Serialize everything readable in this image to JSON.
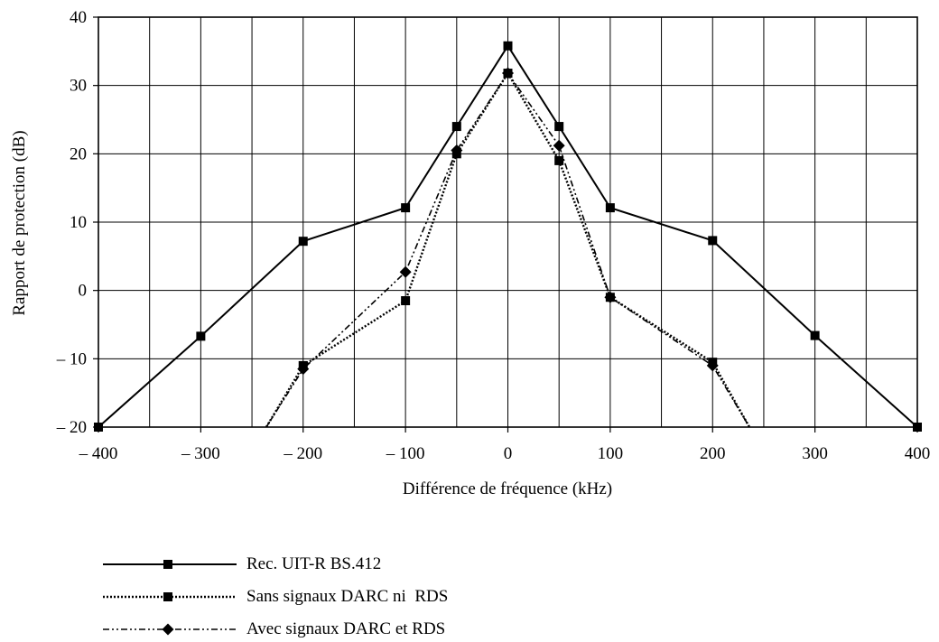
{
  "chart_data": {
    "type": "line",
    "title": "",
    "xlabel": "Différence de fréquence (kHz)",
    "ylabel": "Rapport de protection (dB)",
    "xlim": [
      -400,
      400
    ],
    "ylim": [
      -20,
      40
    ],
    "grid": true,
    "x_ticks": [
      -400,
      -300,
      -200,
      -100,
      0,
      100,
      200,
      300,
      400
    ],
    "x_tick_labels": [
      "– 400",
      "– 300",
      "– 200",
      "– 100",
      "0",
      "100",
      "200",
      "300",
      "400"
    ],
    "x_grid_step": 50,
    "y_ticks": [
      -20,
      -10,
      0,
      10,
      20,
      30,
      40
    ],
    "y_tick_labels": [
      "– 20",
      "– 10",
      "0",
      "10",
      "20",
      "30",
      "40"
    ],
    "legend_position": "bottom-left",
    "series": [
      {
        "name": "Rec. UIT-R BS.412",
        "line_style": "solid",
        "marker": "square",
        "color": "#000000",
        "x": [
          -400,
          -300,
          -200,
          -100,
          -50,
          0,
          50,
          100,
          200,
          300,
          400
        ],
        "y": [
          -20,
          -6.7,
          7.2,
          12.1,
          24,
          35.8,
          24,
          12.1,
          7.3,
          -6.6,
          -20
        ]
      },
      {
        "name": "Sans signaux DARC ni  RDS",
        "line_style": "dotted",
        "marker": "square",
        "color": "#000000",
        "x": [
          -236,
          -200,
          -100,
          -50,
          0,
          50,
          100,
          200,
          236
        ],
        "y": [
          -20,
          -11,
          -1.5,
          20,
          31.8,
          19,
          -1,
          -10.5,
          -20
        ],
        "markers_at": [
          -200,
          -100,
          -50,
          0,
          50,
          100,
          200
        ]
      },
      {
        "name": "Avec signaux DARC et RDS",
        "line_style": "dashdotdot",
        "marker": "diamond",
        "color": "#000000",
        "x": [
          -236,
          -200,
          -100,
          -50,
          0,
          50,
          100,
          200,
          236
        ],
        "y": [
          -20,
          -11.5,
          2.7,
          20.5,
          31.8,
          21.2,
          -1,
          -11,
          -20
        ],
        "markers_at": [
          -200,
          -100,
          -50,
          0,
          50,
          100,
          200
        ]
      }
    ]
  }
}
